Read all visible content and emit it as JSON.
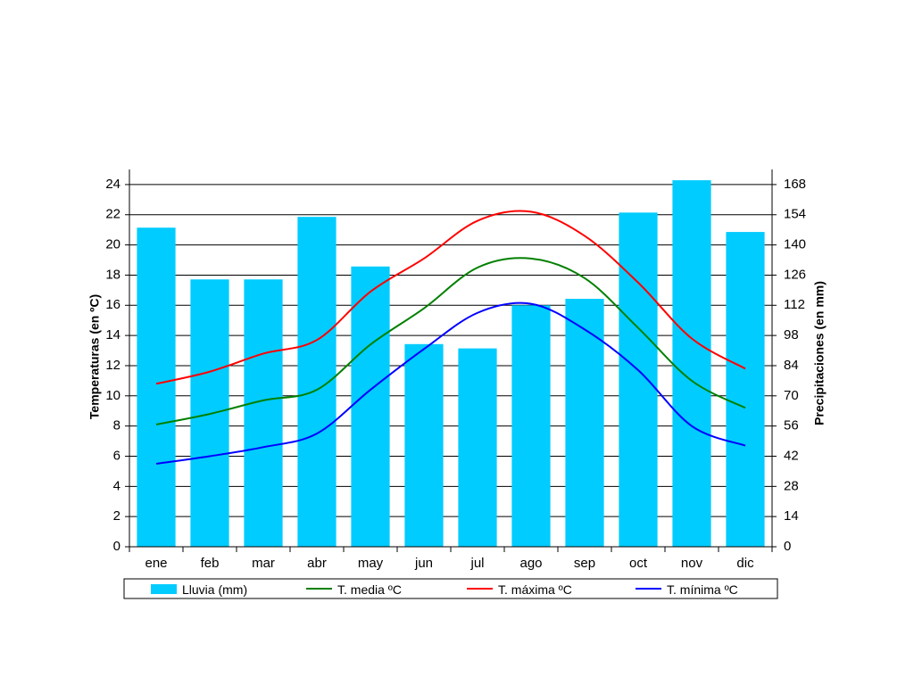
{
  "chart_data": {
    "type": "bar",
    "categories": [
      "ene",
      "feb",
      "mar",
      "abr",
      "may",
      "jun",
      "jul",
      "ago",
      "sep",
      "oct",
      "nov",
      "dic"
    ],
    "ylabel_left": "Temperaturas (en ºC)",
    "ylabel_right": "Precipitaciones (en mm)",
    "ylim_left": [
      0,
      25
    ],
    "ylim_right": [
      0,
      175
    ],
    "yticks_left": [
      0,
      2,
      4,
      6,
      8,
      10,
      12,
      14,
      16,
      18,
      20,
      22,
      24
    ],
    "yticks_right": [
      0,
      14,
      28,
      42,
      56,
      70,
      84,
      98,
      112,
      126,
      140,
      154,
      168
    ],
    "grid": true,
    "legend_position": "bottom",
    "bars": {
      "name": "Lluvia (mm)",
      "axis": "right",
      "color": "#00CCFF",
      "values": [
        148,
        124,
        124,
        153,
        130,
        94,
        92,
        112,
        115,
        155,
        170,
        146
      ]
    },
    "series": [
      {
        "name": "T. media ºC",
        "axis": "left",
        "color": "#008000",
        "values": [
          8.1,
          8.8,
          9.7,
          10.4,
          13.4,
          15.8,
          18.5,
          19.1,
          17.8,
          14.5,
          11.0,
          9.2
        ]
      },
      {
        "name": "T. máxima ºC",
        "axis": "left",
        "color": "#FF0000",
        "values": [
          10.8,
          11.6,
          12.8,
          13.7,
          16.9,
          19.1,
          21.6,
          22.2,
          20.6,
          17.5,
          13.8,
          11.8
        ]
      },
      {
        "name": "T. mínima ºC",
        "axis": "left",
        "color": "#0000FF",
        "values": [
          5.5,
          6.0,
          6.6,
          7.5,
          10.4,
          13.1,
          15.5,
          16.1,
          14.4,
          11.7,
          8.0,
          6.7
        ]
      }
    ]
  }
}
